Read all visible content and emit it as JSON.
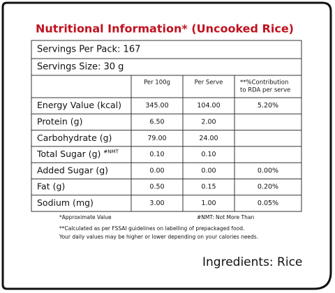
{
  "title": "Nutritional Information* (Uncooked Rice)",
  "servings_per_pack": "Servings Per Pack: 167",
  "servings_size": "Servings Size: 30 g",
  "table": {
    "headers": [
      "Per 100g",
      "Per Serve",
      [
        "**%Contribution",
        "to RDA per serve"
      ]
    ],
    "rows": [
      {
        "name": "Energy Value (kcal)",
        "cells": [
          "345.00",
          "104.00",
          "5.20%"
        ]
      },
      {
        "name": "Protein (g)",
        "cells": [
          "6.50",
          "2.00",
          null
        ]
      },
      {
        "name": "Carbohydrate (g)",
        "cells": [
          "79.00",
          "24.00",
          null
        ]
      },
      {
        "name": "Total Sugar (g)",
        "note": "#NMT",
        "cells": [
          "0.10",
          "0.10",
          null
        ]
      },
      {
        "name": "Added Sugar (g)",
        "cells": [
          "0.00",
          "0.00",
          "0.00%"
        ]
      },
      {
        "name": "Fat (g)",
        "cells": [
          "0.50",
          "0.15",
          "0.20%"
        ]
      },
      {
        "name": "Sodium (mg)",
        "cells": [
          "3.00",
          "1.00",
          "0.05%"
        ]
      }
    ]
  },
  "footnotes": {
    "approximate": "*Approximate Value",
    "nmt": "#NMT: Not More Than",
    "calculated": "**Calculated as per FSSAI guidelines on labelling of prepackaged food.",
    "daily": "Your daily values may be higher or lower depending on your calories needs."
  },
  "ingredients": "Ingredients: Rice"
}
